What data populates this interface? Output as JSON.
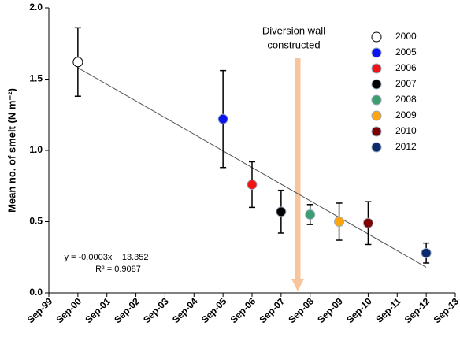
{
  "chart_data": {
    "type": "scatter",
    "y_label": "Mean no. of smelt (N m⁻²)",
    "ylim": [
      0,
      2
    ],
    "yticks": [
      {
        "value": 0,
        "label": "0.0"
      },
      0.5,
      {
        "value": 1,
        "label": "1.0"
      },
      1.5,
      {
        "value": 2,
        "label": "2.0"
      }
    ],
    "xticks": [
      "Sep-99",
      "Sep-00",
      "Sep-01",
      "Sep-02",
      "Sep-03",
      "Sep-04",
      "Sep-05",
      "Sep-06",
      "Sep-07",
      "Sep-08",
      "Sep-09",
      "Sep-10",
      "Sep-11",
      "Sep-12",
      "Sep-13"
    ],
    "series": [
      {
        "name": "2000",
        "color": "#ffffff",
        "x": [
          "Sep-00"
        ],
        "values": [
          1.62
        ],
        "errors": [
          0.24
        ]
      },
      {
        "name": "2005",
        "color": "#0a14f0",
        "x": [
          "Sep-05"
        ],
        "values": [
          1.22
        ],
        "errors": [
          0.34
        ]
      },
      {
        "name": "2006",
        "color": "#f01414",
        "x": [
          "Sep-06"
        ],
        "values": [
          0.76
        ],
        "errors": [
          0.16
        ]
      },
      {
        "name": "2007",
        "color": "#000000",
        "x": [
          "Sep-07"
        ],
        "values": [
          0.57
        ],
        "errors": [
          0.15
        ]
      },
      {
        "name": "2008",
        "color": "#3c9e70",
        "x": [
          "Sep-08"
        ],
        "values": [
          0.55
        ],
        "errors": [
          0.07
        ]
      },
      {
        "name": "2009",
        "color": "#ffa510",
        "x": [
          "Sep-09"
        ],
        "values": [
          0.5
        ],
        "errors": [
          0.13
        ]
      },
      {
        "name": "2010",
        "color": "#800000",
        "x": [
          "Sep-10"
        ],
        "values": [
          0.49
        ],
        "errors": [
          0.15
        ]
      },
      {
        "name": "2012",
        "color": "#0a2a6e",
        "x": [
          "Sep-12"
        ],
        "values": [
          0.28
        ],
        "errors": [
          0.07
        ]
      }
    ],
    "trendline": {
      "x": [
        "Sep-00",
        "Sep-12"
      ],
      "values": [
        1.58,
        0.18
      ]
    },
    "annotations": [
      "Diversion wall",
      "constructed",
      "y = -0.0003x + 13.352",
      "R² = 0.9087"
    ]
  }
}
